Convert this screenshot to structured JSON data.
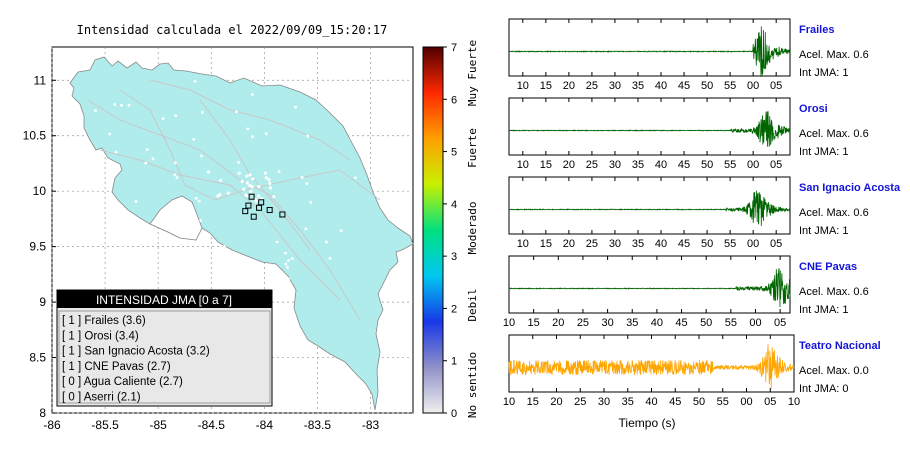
{
  "map": {
    "title": "Intensidad calculada el 2022/09/09_15:20:17",
    "lat_ticks": [
      "11",
      "10.5",
      "10",
      "9.5",
      "9",
      "8.5",
      "8"
    ],
    "lon_ticks": [
      "-86",
      "-85.5",
      "-85",
      "-84.5",
      "-84",
      "-83.5",
      "-83"
    ],
    "lon_range": [
      -86,
      -82.6
    ],
    "lat_range": [
      8,
      11.3
    ],
    "land_color": "#b0ecec",
    "legend": {
      "title": "INTENSIDAD JMA [0 a 7]",
      "items": [
        "[ 1 ]  Frailes (3.6)",
        "[ 1 ]  Orosi (3.4)",
        "[ 1 ]  San Ignacio Acosta (3.2)",
        "[ 1 ]  CNE Pavas (2.7)",
        "[ 0 ]  Agua Caliente (2.7)",
        "[ 0 ]  Aserri (2.1)"
      ]
    },
    "stations": [
      {
        "lon": -84.12,
        "lat": 9.95
      },
      {
        "lon": -84.05,
        "lat": 9.85
      },
      {
        "lon": -83.95,
        "lat": 9.83
      },
      {
        "lon": -84.15,
        "lat": 9.87
      },
      {
        "lon": -84.03,
        "lat": 9.9
      },
      {
        "lon": -83.83,
        "lat": 9.79
      },
      {
        "lon": -84.18,
        "lat": 9.82
      },
      {
        "lon": -84.1,
        "lat": 9.77
      }
    ]
  },
  "colorbar": {
    "ticks": [
      "0",
      "1",
      "2",
      "3",
      "4",
      "5",
      "6",
      "7"
    ],
    "categories": [
      "No sentido",
      "Debil",
      "Moderado",
      "Fuerte",
      "Muy Fuerte"
    ],
    "colors": [
      "#f0f0f0",
      "#9090c8",
      "#1838e8",
      "#00c8f0",
      "#00e080",
      "#c8f000",
      "#ffa000",
      "#ff2800",
      "#500000"
    ]
  },
  "chart_data": {
    "type": "line",
    "xlabel": "Tiempo (s)",
    "traces": [
      {
        "name": "Frailes",
        "stats": [
          "Acel. Max. 0.6",
          "Int JMA: 1"
        ],
        "color": "#006400",
        "ticks": [
          "10",
          "15",
          "20",
          "25",
          "30",
          "35",
          "40",
          "45",
          "50",
          "55",
          "00",
          "05"
        ],
        "tick_start": 10,
        "x_range": [
          7,
          68
        ],
        "noise_until": 58,
        "event_start": 60,
        "event_peak": 62,
        "amp": 1.0,
        "seed": 3
      },
      {
        "name": "Orosi",
        "stats": [
          "Acel. Max. 0.6",
          "Int JMA: 1"
        ],
        "color": "#006400",
        "ticks": [
          "10",
          "15",
          "20",
          "25",
          "30",
          "35",
          "40",
          "45",
          "50",
          "55",
          "00",
          "05"
        ],
        "tick_start": 10,
        "x_range": [
          7,
          68
        ],
        "noise_until": 54,
        "event_start": 55,
        "event_peak": 63,
        "amp": 0.9,
        "seed": 7
      },
      {
        "name": "San Ignacio Acosta",
        "stats": [
          "Acel. Max. 0.6",
          "Int JMA: 1"
        ],
        "color": "#006400",
        "ticks": [
          "10",
          "15",
          "20",
          "25",
          "30",
          "35",
          "40",
          "45",
          "50",
          "55",
          "00",
          "05"
        ],
        "tick_start": 10,
        "x_range": [
          7,
          68
        ],
        "noise_until": 53,
        "event_start": 54,
        "event_peak": 61,
        "amp": 0.9,
        "seed": 11
      },
      {
        "name": "CNE Pavas",
        "stats": [
          "Acel. Max. 0.6",
          "Int JMA: 1"
        ],
        "color": "#006400",
        "ticks": [
          "10",
          "15",
          "20",
          "25",
          "30",
          "35",
          "40",
          "45",
          "50",
          "55",
          "00",
          "05"
        ],
        "tick_start": 10,
        "x_range": [
          10,
          67
        ],
        "noise_until": 55,
        "event_start": 56,
        "event_peak": 65,
        "amp": 0.9,
        "seed": 19
      },
      {
        "name": "Teatro Nacional",
        "stats": [
          "Acel. Max. 0.0",
          "Int JMA: 0"
        ],
        "color": "#ffa500",
        "ticks": [
          "10",
          "15",
          "20",
          "25",
          "30",
          "35",
          "40",
          "45",
          "50",
          "55",
          "00",
          "05",
          "10"
        ],
        "tick_start": 10,
        "x_range": [
          10,
          70
        ],
        "noise_until": 52,
        "event_start": 53,
        "event_peak": 65,
        "amp": 1.0,
        "noise_amp": 0.28,
        "seed": 23
      }
    ]
  }
}
